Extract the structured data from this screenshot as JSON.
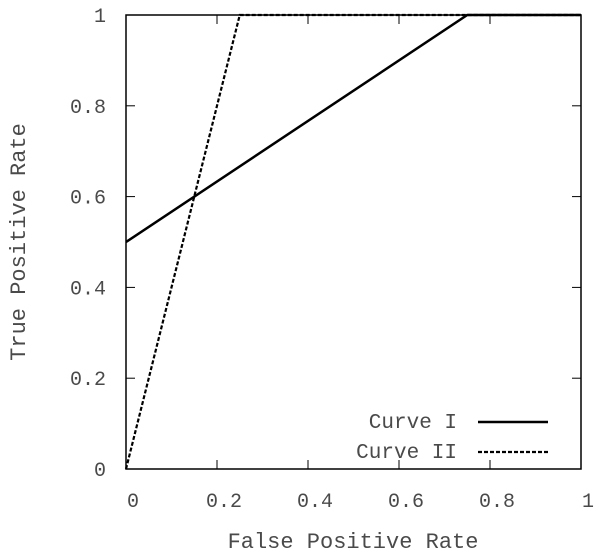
{
  "chart_data": {
    "type": "line",
    "xlabel": "False Positive Rate",
    "ylabel": "True Positive Rate",
    "xlim": [
      0,
      1
    ],
    "ylim": [
      0,
      1
    ],
    "x_ticks": [
      0,
      0.2,
      0.4,
      0.6,
      0.8,
      1
    ],
    "x_tick_labels": [
      "0",
      "0.2",
      "0.4",
      "0.6",
      "0.8",
      "1"
    ],
    "y_ticks": [
      0,
      0.2,
      0.4,
      0.6,
      0.8,
      1
    ],
    "y_tick_labels": [
      "0",
      "0.2",
      "0.4",
      "0.6",
      "0.8",
      "1"
    ],
    "legend_position": "bottom-right",
    "grid": false,
    "series": [
      {
        "name": "Curve I",
        "color": "#000000",
        "dash": "solid",
        "points": [
          [
            0,
            0.5
          ],
          [
            0.75,
            1
          ],
          [
            1,
            1
          ]
        ]
      },
      {
        "name": "Curve II",
        "color": "#000000",
        "dash": "dashed",
        "points": [
          [
            0,
            0
          ],
          [
            0.25,
            1
          ],
          [
            1,
            1
          ]
        ]
      }
    ]
  }
}
